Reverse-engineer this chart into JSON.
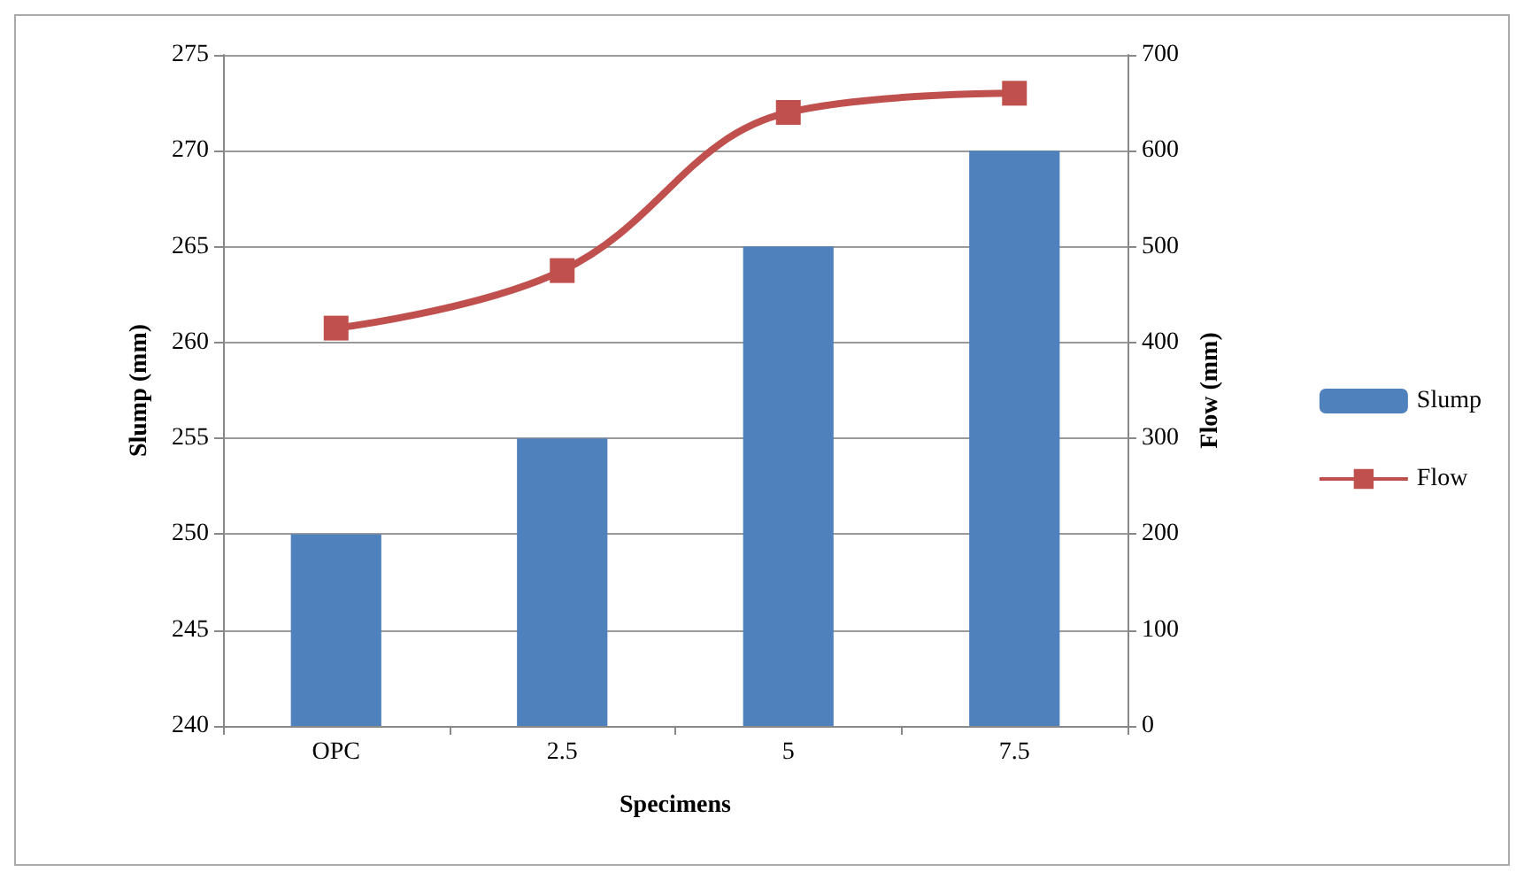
{
  "chart_data": {
    "type": "bar",
    "xlabel": "Specimens",
    "ylabel": "Slump (mm)",
    "y2label": "Flow (mm)",
    "categories": [
      "OPC",
      "2.5",
      "5",
      "7.5"
    ],
    "series": [
      {
        "name": "Slump",
        "color": "#4f81bd",
        "values": [
          250,
          255,
          265,
          270
        ]
      },
      {
        "name": "Flow",
        "type": "line",
        "axis": "y2",
        "color": "#c0504d",
        "marker": "square",
        "values": [
          415,
          475,
          640,
          660
        ]
      }
    ],
    "ylim": [
      240,
      275
    ],
    "yticks": [
      240,
      245,
      250,
      255,
      260,
      265,
      270,
      275
    ],
    "y2lim": [
      0,
      700
    ],
    "y2ticks": [
      0,
      100,
      200,
      300,
      400,
      500,
      600,
      700
    ],
    "grid": "y",
    "legend": "right"
  }
}
